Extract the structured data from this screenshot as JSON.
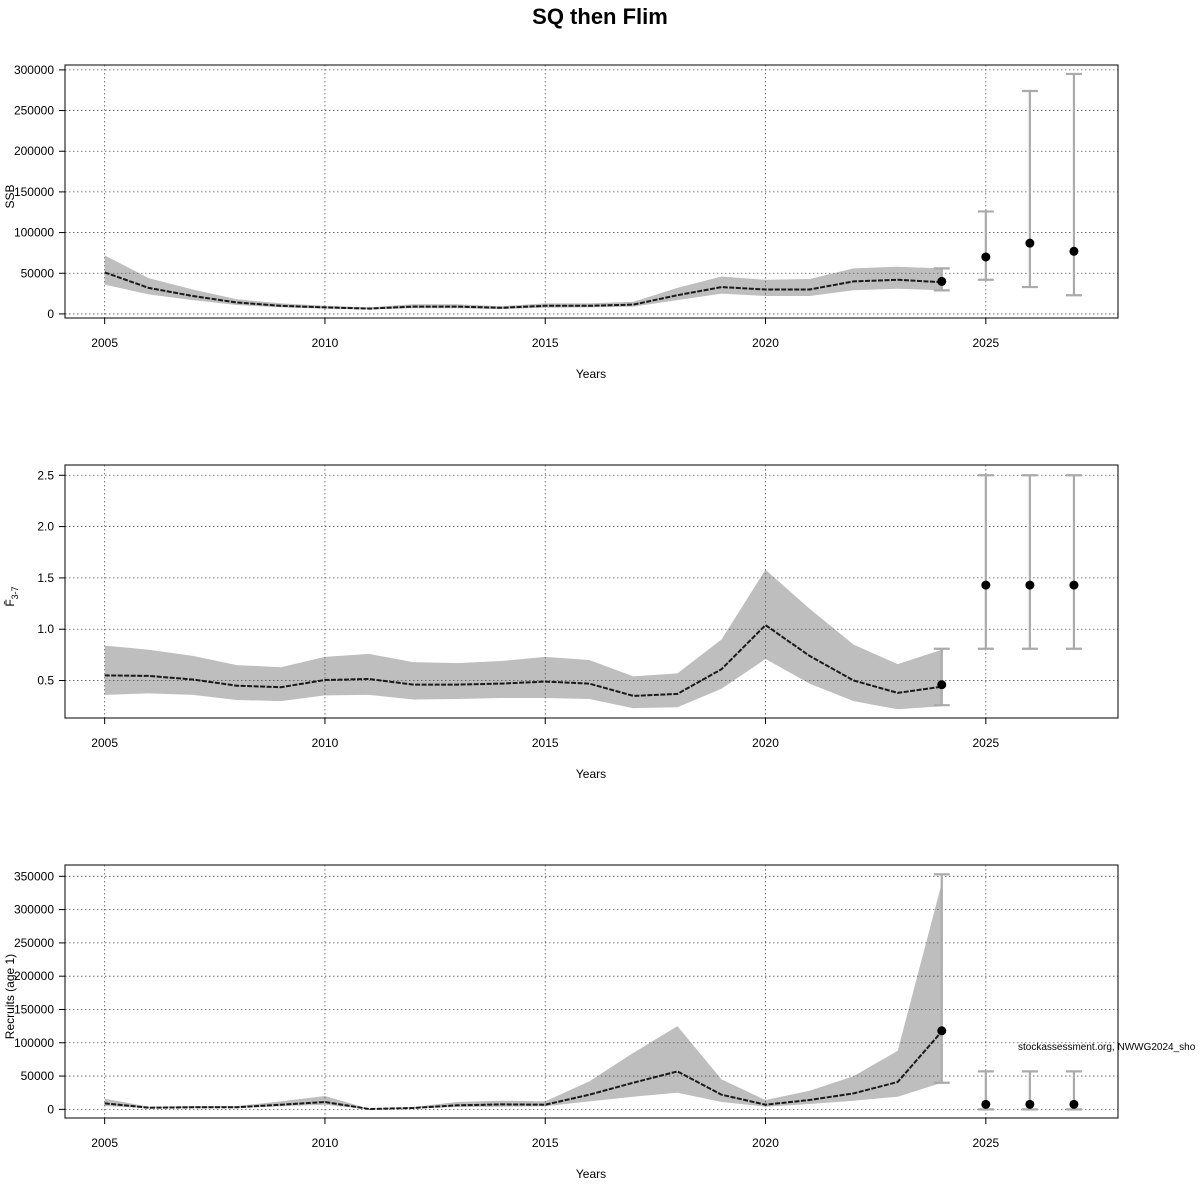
{
  "title": "SQ then Flim",
  "footnote": "stockassessment.org, NWWG2024_sho",
  "colors": {
    "band": "#bebebe",
    "line": "#1a1a1a",
    "errorbar": "#aaaaaa",
    "point": "#000000"
  },
  "chart_data": [
    {
      "id": "ssb",
      "type": "line",
      "xlabel": "Years",
      "ylabel": "SSB",
      "xlim": [
        2004.1,
        2028
      ],
      "ylim": [
        -5000,
        306000
      ],
      "xticks": [
        2005,
        2010,
        2015,
        2020,
        2025
      ],
      "yticks": [
        0,
        50000,
        100000,
        150000,
        200000,
        250000,
        300000
      ],
      "ytick_labels": [
        "0",
        "50000",
        "100000",
        "150000",
        "200000",
        "250000",
        "300000"
      ],
      "grid": true,
      "x": [
        2005,
        2006,
        2007,
        2008,
        2009,
        2010,
        2011,
        2012,
        2013,
        2014,
        2015,
        2016,
        2017,
        2018,
        2019,
        2020,
        2021,
        2022,
        2023,
        2024
      ],
      "estimate": [
        51000,
        32000,
        22000,
        14000,
        10000,
        8000,
        6500,
        9000,
        9000,
        7500,
        10000,
        10000,
        11500,
        23000,
        33000,
        30000,
        30000,
        40000,
        42000,
        39000
      ],
      "lower": [
        36000,
        24000,
        17000,
        11000,
        8000,
        6500,
        5500,
        7000,
        7000,
        6000,
        7500,
        8000,
        9000,
        17000,
        25000,
        22000,
        22000,
        29000,
        31000,
        29000
      ],
      "upper": [
        72000,
        44000,
        30000,
        18000,
        13000,
        10000,
        8000,
        12000,
        12000,
        9500,
        13000,
        13000,
        15000,
        32000,
        46000,
        42000,
        43000,
        56000,
        58000,
        56000
      ],
      "end_point": {
        "x": 2024,
        "y": 40000,
        "lo": 29000,
        "hi": 56000
      },
      "forecast": [
        {
          "x": 2025,
          "y": 70000,
          "lo": 42000,
          "hi": 126000
        },
        {
          "x": 2026,
          "y": 87000,
          "lo": 33000,
          "hi": 274000
        },
        {
          "x": 2027,
          "y": 77000,
          "lo": 23000,
          "hi": 295000
        }
      ]
    },
    {
      "id": "fbar",
      "type": "line",
      "xlabel": "Years",
      "ylabel": "F̄",
      "ylabel_sub": "3-7",
      "xlim": [
        2004.1,
        2028
      ],
      "ylim": [
        0.135,
        2.6
      ],
      "xticks": [
        2005,
        2010,
        2015,
        2020,
        2025
      ],
      "yticks": [
        0.5,
        1.0,
        1.5,
        2.0,
        2.5
      ],
      "ytick_labels": [
        "0.5",
        "1.0",
        "1.5",
        "2.0",
        "2.5"
      ],
      "grid": true,
      "x": [
        2005,
        2006,
        2007,
        2008,
        2009,
        2010,
        2011,
        2012,
        2013,
        2014,
        2015,
        2016,
        2017,
        2018,
        2019,
        2020,
        2021,
        2022,
        2023,
        2024
      ],
      "estimate": [
        0.55,
        0.545,
        0.51,
        0.45,
        0.435,
        0.505,
        0.515,
        0.46,
        0.46,
        0.47,
        0.49,
        0.47,
        0.35,
        0.37,
        0.61,
        1.04,
        0.74,
        0.5,
        0.38,
        0.44
      ],
      "lower": [
        0.36,
        0.375,
        0.36,
        0.31,
        0.3,
        0.355,
        0.36,
        0.315,
        0.32,
        0.33,
        0.33,
        0.32,
        0.23,
        0.24,
        0.42,
        0.71,
        0.47,
        0.3,
        0.22,
        0.25
      ],
      "upper": [
        0.84,
        0.8,
        0.74,
        0.65,
        0.63,
        0.73,
        0.76,
        0.68,
        0.67,
        0.69,
        0.73,
        0.7,
        0.54,
        0.57,
        0.9,
        1.58,
        1.2,
        0.85,
        0.66,
        0.8
      ],
      "end_point": {
        "x": 2024,
        "y": 0.46,
        "lo": 0.26,
        "hi": 0.81
      },
      "forecast": [
        {
          "x": 2025,
          "y": 1.43,
          "lo": 0.81,
          "hi": 2.5
        },
        {
          "x": 2026,
          "y": 1.43,
          "lo": 0.81,
          "hi": 2.5
        },
        {
          "x": 2027,
          "y": 1.43,
          "lo": 0.81,
          "hi": 2.5
        }
      ]
    },
    {
      "id": "recruits",
      "type": "line",
      "xlabel": "Years",
      "ylabel": "Recruits (age 1)",
      "xlim": [
        2004.1,
        2028
      ],
      "ylim": [
        -13000,
        367000
      ],
      "xticks": [
        2005,
        2010,
        2015,
        2020,
        2025
      ],
      "yticks": [
        0,
        50000,
        100000,
        150000,
        200000,
        250000,
        300000,
        350000
      ],
      "ytick_labels": [
        "0",
        "50000",
        "100000",
        "150000",
        "200000",
        "250000",
        "300000",
        "350000"
      ],
      "grid": true,
      "x": [
        2005,
        2006,
        2007,
        2008,
        2009,
        2010,
        2011,
        2012,
        2013,
        2014,
        2015,
        2016,
        2017,
        2018,
        2019,
        2020,
        2021,
        2022,
        2023,
        2024
      ],
      "estimate": [
        9000,
        2500,
        3000,
        3000,
        7000,
        11000,
        500,
        2000,
        6000,
        7500,
        7000,
        22000,
        40000,
        57000,
        22000,
        7000,
        14000,
        24000,
        41000,
        117000
      ],
      "lower": [
        5000,
        1500,
        2000,
        2000,
        4500,
        7000,
        200,
        1200,
        3500,
        4000,
        4500,
        12000,
        19000,
        25000,
        11000,
        4000,
        8000,
        13000,
        19000,
        40000
      ],
      "upper": [
        16000,
        4000,
        5000,
        5000,
        12000,
        20000,
        1000,
        3500,
        11000,
        13000,
        12000,
        42000,
        85000,
        125000,
        45000,
        14000,
        28000,
        50000,
        88000,
        340000
      ],
      "end_point": {
        "x": 2024,
        "y": 118000,
        "lo": 40000,
        "hi": 353000
      },
      "forecast": [
        {
          "x": 2025,
          "y": 7500,
          "lo": 0,
          "hi": 57000
        },
        {
          "x": 2026,
          "y": 7500,
          "lo": 0,
          "hi": 57000
        },
        {
          "x": 2027,
          "y": 7500,
          "lo": 0,
          "hi": 57000
        }
      ]
    }
  ]
}
